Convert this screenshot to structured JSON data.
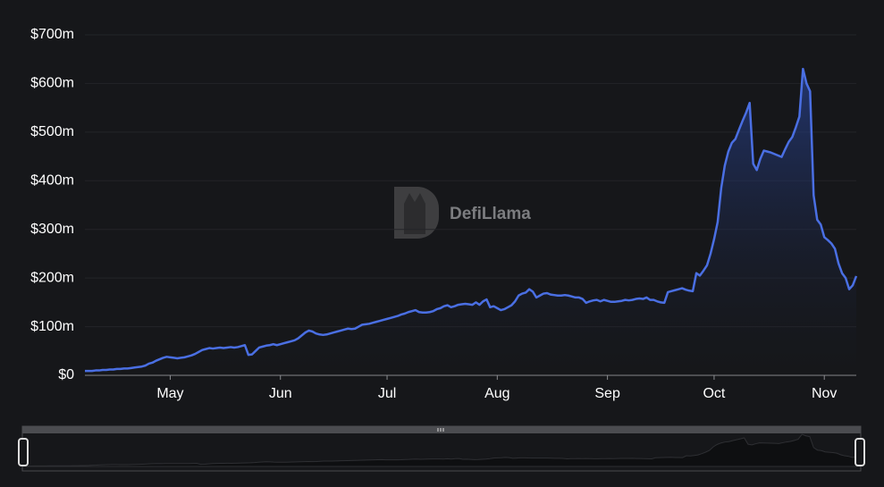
{
  "chart_data": {
    "type": "area",
    "watermark": "DefiLlama",
    "color": "#4a6fe3",
    "grid": true,
    "ylim": [
      0,
      700
    ],
    "yticks": [
      {
        "value": 0,
        "label": "$0"
      },
      {
        "value": 100,
        "label": "$100m"
      },
      {
        "value": 200,
        "label": "$200m"
      },
      {
        "value": 300,
        "label": "$300m"
      },
      {
        "value": 400,
        "label": "$400m"
      },
      {
        "value": 500,
        "label": "$500m"
      },
      {
        "value": 600,
        "label": "$600m"
      },
      {
        "value": 700,
        "label": "$700m"
      }
    ],
    "categories": [
      null,
      null,
      null,
      null,
      null,
      null,
      null,
      null,
      null,
      null,
      null,
      null,
      null,
      null,
      null,
      null,
      null,
      null,
      null,
      null,
      null,
      null,
      null,
      null,
      "May",
      null,
      null,
      null,
      null,
      null,
      null,
      null,
      null,
      null,
      null,
      null,
      null,
      null,
      null,
      null,
      null,
      null,
      null,
      null,
      null,
      null,
      null,
      null,
      null,
      null,
      null,
      null,
      null,
      null,
      null,
      "Jun",
      null,
      null,
      null,
      null,
      null,
      null,
      null,
      null,
      null,
      null,
      null,
      null,
      null,
      null,
      null,
      null,
      null,
      null,
      null,
      null,
      null,
      null,
      null,
      null,
      null,
      null,
      null,
      null,
      null,
      "Jul",
      null,
      null,
      null,
      null,
      null,
      null,
      null,
      null,
      null,
      null,
      null,
      null,
      null,
      null,
      null,
      null,
      null,
      null,
      null,
      null,
      null,
      null,
      null,
      null,
      null,
      null,
      null,
      null,
      null,
      null,
      "Aug",
      null,
      null,
      null,
      null,
      null,
      null,
      null,
      null,
      null,
      null,
      null,
      null,
      null,
      null,
      null,
      null,
      null,
      null,
      null,
      null,
      null,
      null,
      null,
      null,
      null,
      null,
      null,
      null,
      null,
      null,
      "Sep",
      null,
      null,
      null,
      null,
      null,
      null,
      null,
      null,
      null,
      null,
      null,
      null,
      null,
      null,
      null,
      null,
      null,
      null,
      null,
      null,
      null,
      null,
      null,
      null,
      null,
      null,
      null,
      null,
      null,
      "Oct",
      null,
      null,
      null,
      null,
      null,
      null,
      null,
      null,
      null,
      null,
      null,
      null,
      null,
      null,
      null,
      null,
      null,
      null,
      null,
      null,
      null,
      null,
      null,
      null,
      null,
      null,
      null,
      null,
      null,
      null,
      "Nov",
      null,
      null,
      null,
      null,
      null,
      null,
      null,
      null,
      null
    ],
    "values": [
      9,
      9,
      9,
      10,
      10,
      11,
      11,
      12,
      12,
      13,
      13,
      14,
      14,
      15,
      16,
      17,
      18,
      20,
      24,
      26,
      30,
      33,
      36,
      38,
      37,
      36,
      35,
      36,
      37,
      39,
      41,
      44,
      48,
      52,
      54,
      56,
      55,
      56,
      57,
      56,
      57,
      58,
      57,
      58,
      60,
      62,
      42,
      43,
      50,
      57,
      59,
      61,
      62,
      64,
      62,
      64,
      66,
      68,
      70,
      72,
      76,
      82,
      88,
      92,
      90,
      86,
      84,
      83,
      84,
      86,
      88,
      90,
      92,
      94,
      96,
      95,
      96,
      100,
      104,
      105,
      106,
      108,
      110,
      112,
      114,
      116,
      118,
      120,
      122,
      125,
      127,
      130,
      132,
      134,
      130,
      129,
      129,
      130,
      132,
      136,
      138,
      142,
      144,
      140,
      142,
      145,
      146,
      147,
      146,
      145,
      150,
      145,
      152,
      156,
      140,
      142,
      138,
      134,
      136,
      140,
      144,
      152,
      164,
      168,
      170,
      177,
      172,
      160,
      164,
      168,
      169,
      166,
      165,
      164,
      164,
      165,
      164,
      162,
      160,
      160,
      157,
      149,
      152,
      154,
      155,
      152,
      155,
      153,
      151,
      151,
      152,
      153,
      155,
      154,
      155,
      157,
      158,
      157,
      160,
      155,
      155,
      152,
      150,
      149,
      171,
      173,
      175,
      177,
      179,
      176,
      174,
      173,
      210,
      205,
      215,
      226,
      250,
      280,
      315,
      385,
      431,
      460,
      478,
      486,
      505,
      523,
      540,
      560,
      435,
      422,
      445,
      462,
      460,
      458,
      455,
      452,
      449,
      465,
      480,
      490,
      510,
      532,
      630,
      600,
      584,
      370,
      320,
      310,
      284,
      278,
      271,
      260,
      230,
      210,
      200,
      177,
      185,
      204
    ]
  }
}
